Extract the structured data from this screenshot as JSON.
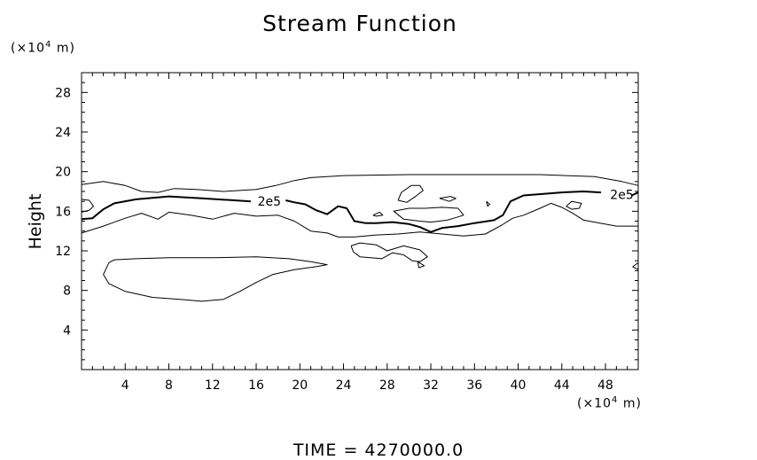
{
  "chart_data": {
    "type": "contour",
    "title": "Stream Function",
    "ylabel": "Height",
    "x_unit": {
      "prefix": "(×10",
      "exp": "4",
      "suffix": " m)"
    },
    "y_unit": {
      "prefix": "(×10",
      "exp": "4",
      "suffix": " m)"
    },
    "xlim": [
      0,
      51
    ],
    "ylim": [
      0,
      30
    ],
    "x_ticks": [
      4,
      8,
      12,
      16,
      20,
      24,
      28,
      32,
      36,
      40,
      44,
      48
    ],
    "y_ticks": [
      4,
      8,
      12,
      16,
      20,
      24,
      28
    ],
    "footer": "TIME  =  4270000.0",
    "contour_labels": [
      {
        "text": "2e5",
        "x": 17.2,
        "y": 17.0
      },
      {
        "text": "2e5",
        "x": 49.5,
        "y": 17.7
      }
    ],
    "contours": [
      {
        "name": "thick-2e5-left",
        "style": "thick",
        "points": [
          [
            0,
            15.2
          ],
          [
            1,
            15.3
          ],
          [
            2,
            16.2
          ],
          [
            3,
            16.8
          ],
          [
            5,
            17.2
          ],
          [
            8,
            17.5
          ],
          [
            11,
            17.3
          ],
          [
            14,
            17.1
          ],
          [
            15.5,
            17.0
          ]
        ]
      },
      {
        "name": "thick-2e5-right",
        "style": "thick",
        "points": [
          [
            18.7,
            17.1
          ],
          [
            19.5,
            16.9
          ],
          [
            20.5,
            16.7
          ],
          [
            21.5,
            16.1
          ],
          [
            22.5,
            15.7
          ],
          [
            23.5,
            16.5
          ],
          [
            24.3,
            16.3
          ],
          [
            25,
            15.0
          ],
          [
            26,
            14.8
          ],
          [
            27,
            14.8
          ],
          [
            28.5,
            14.9
          ],
          [
            30,
            14.7
          ],
          [
            31,
            14.4
          ],
          [
            32,
            13.9
          ],
          [
            33,
            14.3
          ],
          [
            34.5,
            14.5
          ],
          [
            36,
            14.8
          ],
          [
            37.8,
            15.1
          ],
          [
            38.6,
            15.6
          ],
          [
            39.3,
            17.0
          ],
          [
            40.5,
            17.6
          ],
          [
            44,
            17.9
          ],
          [
            46,
            18.0
          ],
          [
            47.6,
            17.9
          ]
        ]
      },
      {
        "name": "thick-2e5-edge",
        "style": "thick",
        "points": [
          [
            50.4,
            17.6
          ],
          [
            51,
            17.9
          ]
        ]
      },
      {
        "name": "outer-top",
        "style": "thin",
        "points": [
          [
            0,
            18.7
          ],
          [
            2,
            19.0
          ],
          [
            4,
            18.6
          ],
          [
            5.5,
            18.0
          ],
          [
            7,
            17.9
          ],
          [
            8.5,
            18.3
          ],
          [
            10.5,
            18.2
          ],
          [
            13,
            18.0
          ],
          [
            16,
            18.2
          ],
          [
            17.8,
            18.6
          ],
          [
            19.5,
            19.1
          ],
          [
            21,
            19.4
          ],
          [
            24,
            19.6
          ],
          [
            30,
            19.7
          ],
          [
            36,
            19.7
          ],
          [
            42,
            19.7
          ],
          [
            47,
            19.5
          ],
          [
            49.5,
            19.0
          ],
          [
            51,
            18.6
          ]
        ]
      },
      {
        "name": "outer-bottom",
        "style": "thin",
        "points": [
          [
            0,
            13.8
          ],
          [
            2,
            14.5
          ],
          [
            4,
            15.3
          ],
          [
            5.5,
            15.8
          ],
          [
            7,
            15.2
          ],
          [
            8,
            15.9
          ],
          [
            10,
            15.6
          ],
          [
            12,
            15.2
          ],
          [
            14,
            15.8
          ],
          [
            16,
            15.5
          ],
          [
            18,
            15.6
          ],
          [
            19.5,
            15.0
          ],
          [
            21,
            14.0
          ],
          [
            22.5,
            13.8
          ],
          [
            23.5,
            13.4
          ],
          [
            25,
            13.4
          ],
          [
            27,
            13.6
          ],
          [
            29,
            13.7
          ],
          [
            31,
            13.9
          ],
          [
            33,
            13.7
          ],
          [
            35,
            13.5
          ],
          [
            37,
            13.7
          ],
          [
            38.5,
            14.6
          ],
          [
            39.5,
            15.3
          ],
          [
            40.5,
            15.6
          ],
          [
            42,
            16.3
          ],
          [
            43,
            16.8
          ],
          [
            44,
            16.4
          ],
          [
            45,
            15.8
          ],
          [
            46,
            15.1
          ],
          [
            47.5,
            14.8
          ],
          [
            49,
            14.5
          ],
          [
            51,
            14.5
          ]
        ]
      },
      {
        "name": "left-edge-loop",
        "style": "thin",
        "points": [
          [
            0,
            17.2
          ],
          [
            0.7,
            17.1
          ],
          [
            1.1,
            16.5
          ],
          [
            0.7,
            16.1
          ],
          [
            0,
            15.9
          ]
        ]
      },
      {
        "name": "lower-lobe",
        "style": "thin",
        "points": [
          [
            2.5,
            10.8
          ],
          [
            3,
            11.1
          ],
          [
            5,
            11.2
          ],
          [
            8,
            11.3
          ],
          [
            12,
            11.3
          ],
          [
            16,
            11.4
          ],
          [
            19,
            11.2
          ],
          [
            21,
            10.9
          ],
          [
            22.5,
            10.6
          ],
          [
            21.5,
            10.4
          ],
          [
            19.5,
            10.1
          ],
          [
            17.5,
            9.6
          ],
          [
            16,
            8.8
          ],
          [
            14.5,
            7.9
          ],
          [
            13,
            7.1
          ],
          [
            11,
            6.9
          ],
          [
            9,
            7.1
          ],
          [
            6.5,
            7.3
          ],
          [
            4,
            7.9
          ],
          [
            2.5,
            8.7
          ],
          [
            2.0,
            9.6
          ],
          [
            2.5,
            10.8
          ]
        ]
      },
      {
        "name": "island-a",
        "style": "thin",
        "points": [
          [
            29.0,
            17.1
          ],
          [
            29.3,
            17.9
          ],
          [
            30.2,
            18.6
          ],
          [
            31.0,
            18.6
          ],
          [
            31.3,
            18.1
          ],
          [
            30.6,
            17.5
          ],
          [
            29.8,
            16.9
          ],
          [
            29.0,
            17.1
          ]
        ]
      },
      {
        "name": "island-b",
        "style": "thin",
        "points": [
          [
            32.8,
            17.3
          ],
          [
            33.8,
            17.5
          ],
          [
            34.3,
            17.3
          ],
          [
            33.7,
            17.0
          ],
          [
            32.8,
            17.3
          ]
        ]
      },
      {
        "name": "island-c",
        "style": "thin",
        "points": [
          [
            32,
            14.9
          ],
          [
            33.5,
            15.1
          ],
          [
            35,
            15.6
          ],
          [
            34.5,
            16.3
          ],
          [
            33,
            16.4
          ],
          [
            31.5,
            16.3
          ],
          [
            30,
            16.3
          ],
          [
            28.6,
            16.0
          ],
          [
            29.5,
            15.2
          ],
          [
            31,
            15.0
          ],
          [
            32,
            14.9
          ]
        ]
      },
      {
        "name": "island-d",
        "style": "thin",
        "points": [
          [
            26.7,
            15.6
          ],
          [
            27.3,
            15.9
          ],
          [
            27.6,
            15.6
          ],
          [
            27.0,
            15.5
          ],
          [
            26.7,
            15.6
          ]
        ]
      },
      {
        "name": "island-e",
        "style": "thin",
        "points": [
          [
            37.1,
            17.0
          ],
          [
            37.4,
            16.7
          ],
          [
            37.2,
            16.5
          ],
          [
            37.1,
            17.0
          ]
        ]
      },
      {
        "name": "island-f",
        "style": "thin",
        "points": [
          [
            44.4,
            16.5
          ],
          [
            44.9,
            17.0
          ],
          [
            45.8,
            16.8
          ],
          [
            45.6,
            16.3
          ],
          [
            44.9,
            16.2
          ],
          [
            44.4,
            16.5
          ]
        ]
      },
      {
        "name": "mid-island",
        "style": "thin",
        "points": [
          [
            24.7,
            12.5
          ],
          [
            25.5,
            12.8
          ],
          [
            27,
            12.6
          ],
          [
            28,
            12.0
          ],
          [
            29.5,
            12.5
          ],
          [
            31,
            12.1
          ],
          [
            31.7,
            11.4
          ],
          [
            31.0,
            10.9
          ],
          [
            30.3,
            11.0
          ],
          [
            29.5,
            11.6
          ],
          [
            28.5,
            11.8
          ],
          [
            27.5,
            11.2
          ],
          [
            26.5,
            11.3
          ],
          [
            25.5,
            11.4
          ],
          [
            24.9,
            11.9
          ],
          [
            24.7,
            12.5
          ]
        ]
      },
      {
        "name": "mid-island-small",
        "style": "thin",
        "points": [
          [
            30.8,
            10.9
          ],
          [
            31.4,
            10.5
          ],
          [
            30.9,
            10.3
          ],
          [
            30.8,
            10.9
          ]
        ]
      },
      {
        "name": "right-edge-tick",
        "style": "thin",
        "points": [
          [
            51,
            10.8
          ],
          [
            50.5,
            10.4
          ],
          [
            51,
            10.1
          ]
        ]
      }
    ]
  }
}
